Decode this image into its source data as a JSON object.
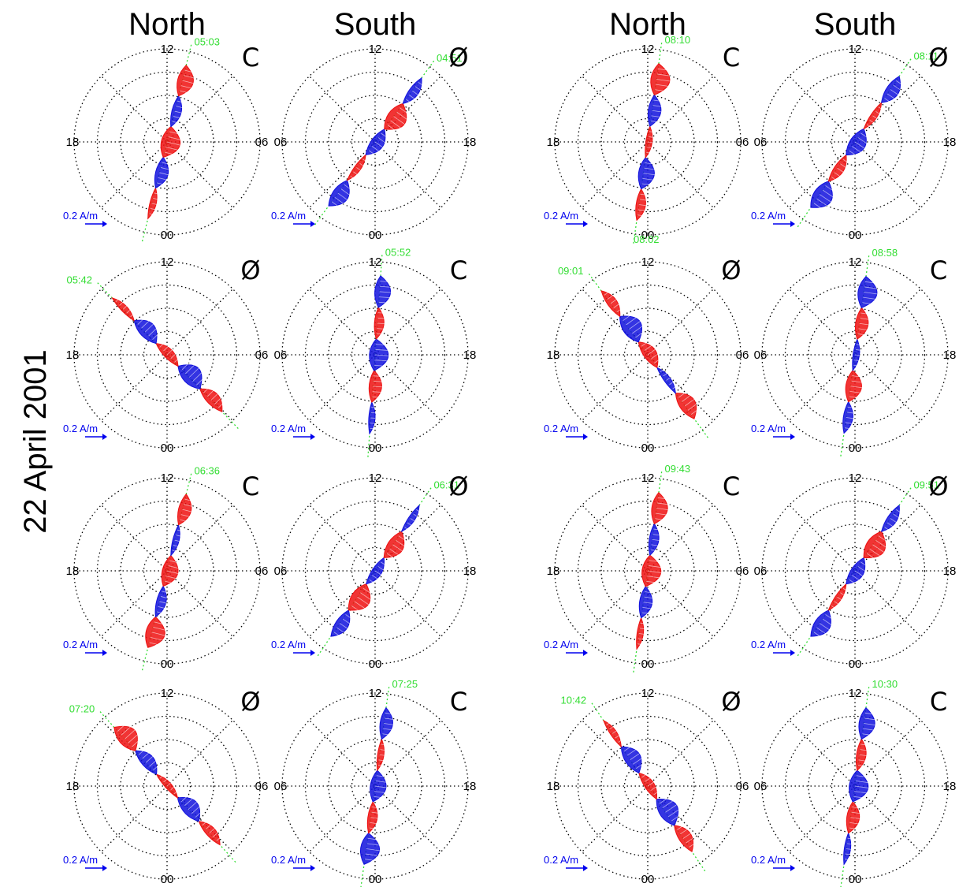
{
  "figure": {
    "date_label": "22 April 2001",
    "columns": [
      "North",
      "South",
      "North",
      "South"
    ],
    "colors": {
      "positive": "#ee1111",
      "negative": "#1111dd",
      "track": "#33dd33",
      "scale": "#0000ee"
    },
    "scale_label": "0.2 A/m"
  },
  "chart_data": {
    "type": "polar-vector",
    "description_note": "Polar dials of magnetic local time with field-aligned current profiles",
    "mlt_ticks": {
      "north": [
        "12",
        "18",
        "06",
        "00"
      ],
      "south": [
        "12",
        "06",
        "18",
        "00"
      ]
    },
    "panels": [
      {
        "hemisphere": "North",
        "symbol": "C",
        "times": [
          "05:03"
        ],
        "track_angle": 14
      },
      {
        "hemisphere": "South",
        "symbol": "Ø",
        "times": [
          "04:51"
        ],
        "track_angle": 36
      },
      {
        "hemisphere": "North",
        "symbol": "C",
        "times": [
          "08:10",
          "08:02"
        ],
        "track_angle": 8
      },
      {
        "hemisphere": "South",
        "symbol": "Ø",
        "times": [
          "08:11"
        ],
        "track_angle": 34
      },
      {
        "hemisphere": "North",
        "symbol": "Ø",
        "times": [
          "05:42"
        ],
        "track_angle": -44
      },
      {
        "hemisphere": "South",
        "symbol": "C",
        "times": [
          "05:52"
        ],
        "track_angle": 4
      },
      {
        "hemisphere": "North",
        "symbol": "Ø",
        "times": [
          "09:01"
        ],
        "track_angle": -36
      },
      {
        "hemisphere": "South",
        "symbol": "C",
        "times": [
          "08:58"
        ],
        "track_angle": 8
      },
      {
        "hemisphere": "North",
        "symbol": "C",
        "times": [
          "06:36"
        ],
        "track_angle": 14
      },
      {
        "hemisphere": "South",
        "symbol": "Ø",
        "times": [
          "06:31"
        ],
        "track_angle": 34
      },
      {
        "hemisphere": "North",
        "symbol": "C",
        "times": [
          "09:43"
        ],
        "track_angle": 8
      },
      {
        "hemisphere": "South",
        "symbol": "Ø",
        "times": [
          "09:51"
        ],
        "track_angle": 34
      },
      {
        "hemisphere": "North",
        "symbol": "Ø",
        "times": [
          "07:20"
        ],
        "track_angle": -42
      },
      {
        "hemisphere": "South",
        "symbol": "C",
        "times": [
          "07:25"
        ],
        "track_angle": 8
      },
      {
        "hemisphere": "North",
        "symbol": "Ø",
        "times": [
          "10:42"
        ],
        "track_angle": -34
      },
      {
        "hemisphere": "South",
        "symbol": "C",
        "times": [
          "10:30"
        ],
        "track_angle": 8
      }
    ]
  }
}
